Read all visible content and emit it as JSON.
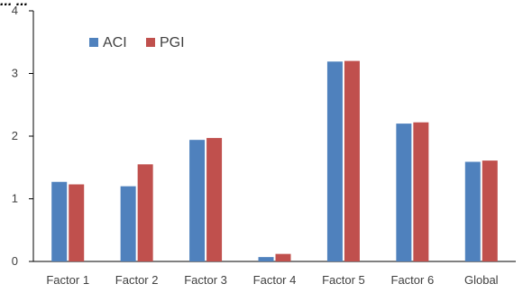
{
  "chart_data": {
    "type": "bar",
    "title": "... ...",
    "categories": [
      "Factor 1",
      "Factor 2",
      "Factor 3",
      "Factor 4",
      "Factor 5",
      "Factor 6",
      "Global"
    ],
    "series": [
      {
        "name": "ACI",
        "color": "#4f81bd",
        "values": [
          1.27,
          1.2,
          1.94,
          0.07,
          3.19,
          2.2,
          1.59
        ]
      },
      {
        "name": "PGI",
        "color": "#c0504d",
        "values": [
          1.23,
          1.55,
          1.97,
          0.12,
          3.2,
          2.22,
          1.61
        ]
      }
    ],
    "y_ticks": [
      "0",
      "1",
      "2",
      "3",
      "4"
    ],
    "ylim": [
      0,
      4
    ],
    "xlabel": "",
    "ylabel": "",
    "grid": false,
    "legend_position": "top-left"
  }
}
